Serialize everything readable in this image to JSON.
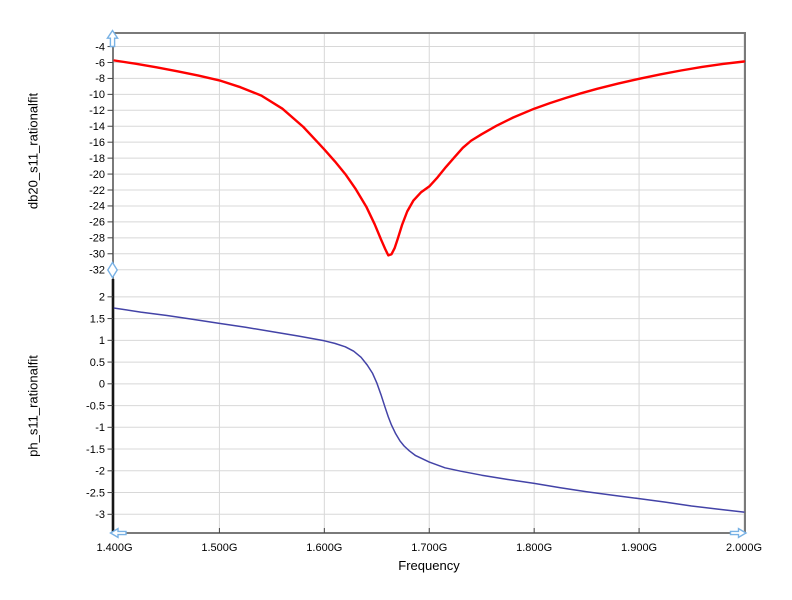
{
  "window": {
    "background": "#ffffff"
  },
  "x_axis": {
    "label": "Frequency",
    "unit": "G",
    "xlim": [
      1.4,
      2.0
    ],
    "tick_values": [
      1.4,
      1.5,
      1.6,
      1.7,
      1.8,
      1.9,
      2.0
    ],
    "tick_labels": [
      "1.400G",
      "1.500G",
      "1.600G",
      "1.700G",
      "1.800G",
      "1.900G",
      "2.000G"
    ]
  },
  "style": {
    "frame_color": "#7a7a7a",
    "grid_color": "#d8d8d8",
    "tick_color": "#444444",
    "text_color": "#000000",
    "selected_axis_color": "#161616",
    "handle_color": "#79b2e5",
    "handle_fill": "#ffffff"
  },
  "chart_data": [
    {
      "type": "line",
      "title": "",
      "ylabel": "db20_s11_rationalfit",
      "grid": true,
      "legend": "none",
      "ylim": [
        -32,
        -2.3
      ],
      "ytick_values": [
        -4,
        -6,
        -8,
        -10,
        -12,
        -14,
        -16,
        -18,
        -20,
        -22,
        -24,
        -26,
        -28,
        -30,
        -32
      ],
      "ytick_labels": [
        "-4",
        "-6",
        "-8",
        "-10",
        "-12",
        "-14",
        "-16",
        "-18",
        "-20",
        "-22",
        "-24",
        "-26",
        "-28",
        "-30",
        "-32"
      ],
      "series": [
        {
          "name": "db20_s11_rationalfit",
          "color": "#ff0000",
          "width": 2.4,
          "x": [
            1.4,
            1.42,
            1.44,
            1.46,
            1.48,
            1.5,
            1.52,
            1.54,
            1.56,
            1.58,
            1.595,
            1.6,
            1.61,
            1.62,
            1.63,
            1.64,
            1.648,
            1.654,
            1.658,
            1.661,
            1.664,
            1.667,
            1.67,
            1.674,
            1.679,
            1.685,
            1.692,
            1.7,
            1.708,
            1.716,
            1.724,
            1.732,
            1.74,
            1.75,
            1.764,
            1.78,
            1.8,
            1.815,
            1.83,
            1.845,
            1.86,
            1.88,
            1.9,
            1.92,
            1.94,
            1.96,
            1.98,
            2.0
          ],
          "y": [
            -5.75,
            -6.15,
            -6.6,
            -7.1,
            -7.65,
            -8.25,
            -9.1,
            -10.15,
            -11.8,
            -14.1,
            -16.2,
            -16.9,
            -18.4,
            -20.0,
            -21.9,
            -24.1,
            -26.3,
            -28.2,
            -29.4,
            -30.2,
            -30.05,
            -29.3,
            -28.1,
            -26.4,
            -24.7,
            -23.3,
            -22.3,
            -21.55,
            -20.4,
            -19.1,
            -17.9,
            -16.7,
            -15.8,
            -15.0,
            -13.95,
            -12.9,
            -11.8,
            -11.1,
            -10.45,
            -9.85,
            -9.3,
            -8.65,
            -8.05,
            -7.5,
            -7.0,
            -6.55,
            -6.18,
            -5.88
          ]
        }
      ],
      "annotations": {
        "resonance_freq_GHz": 1.661,
        "min_dB": -30.2
      }
    },
    {
      "type": "line",
      "title": "",
      "ylabel": "ph_s11_rationalfit",
      "grid": true,
      "legend": "none",
      "ylim": [
        -3.43,
        2.41
      ],
      "ytick_values": [
        2,
        1.5,
        1,
        0.5,
        0,
        -0.5,
        -1,
        -1.5,
        -2,
        -2.5,
        -3
      ],
      "ytick_labels": [
        "2",
        "1.5",
        "1",
        "0.5",
        "0",
        "-0.5",
        "-1",
        "-1.5",
        "-2",
        "-2.5",
        "-3"
      ],
      "series": [
        {
          "name": "ph_s11_rationalfit",
          "color": "#4343a7",
          "width": 1.5,
          "x": [
            1.4,
            1.425,
            1.45,
            1.475,
            1.5,
            1.525,
            1.55,
            1.575,
            1.6,
            1.61,
            1.62,
            1.628,
            1.635,
            1.641,
            1.646,
            1.65,
            1.654,
            1.658,
            1.661,
            1.664,
            1.668,
            1.672,
            1.676,
            1.681,
            1.687,
            1.694,
            1.7,
            1.715,
            1.73,
            1.75,
            1.775,
            1.8,
            1.825,
            1.85,
            1.875,
            1.9,
            1.925,
            1.95,
            1.975,
            2.0
          ],
          "y": [
            1.74,
            1.65,
            1.57,
            1.48,
            1.39,
            1.3,
            1.2,
            1.1,
            0.99,
            0.93,
            0.85,
            0.75,
            0.61,
            0.43,
            0.24,
            0.02,
            -0.25,
            -0.55,
            -0.76,
            -0.95,
            -1.15,
            -1.31,
            -1.43,
            -1.54,
            -1.65,
            -1.73,
            -1.8,
            -1.93,
            -2.01,
            -2.1,
            -2.2,
            -2.29,
            -2.39,
            -2.48,
            -2.56,
            -2.64,
            -2.72,
            -2.81,
            -2.88,
            -2.95
          ]
        }
      ],
      "annotations": {
        "phase_zero_crossing_GHz": 1.65
      }
    }
  ]
}
